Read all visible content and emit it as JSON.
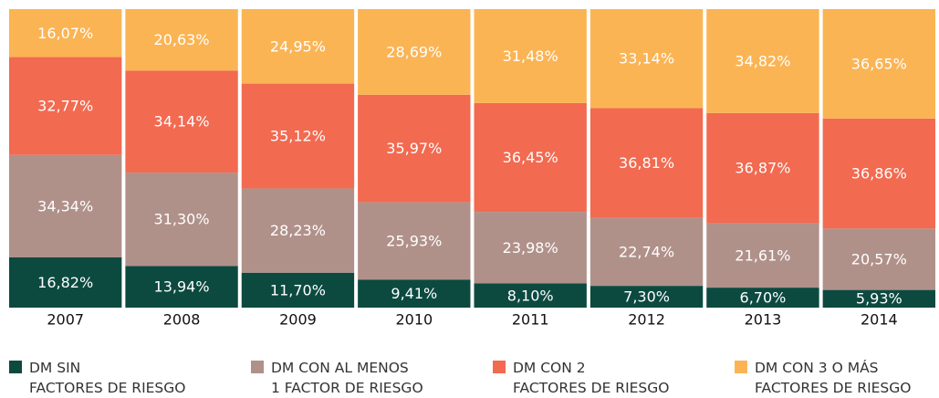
{
  "chart_data": {
    "type": "stacked-bar",
    "categories": [
      "2007",
      "2008",
      "2009",
      "2010",
      "2011",
      "2012",
      "2013",
      "2014"
    ],
    "ylim": [
      0,
      100
    ],
    "series": [
      {
        "name": "DM SIN\nFACTORES DE RIESGO",
        "color": "#0c4a40",
        "values": [
          16.82,
          13.94,
          11.7,
          9.41,
          8.1,
          7.3,
          6.7,
          5.93
        ],
        "value_labels": [
          "16,82%",
          "13,94%",
          "11,70%",
          "9,41%",
          "8,10%",
          "7,30%",
          "6,70%",
          "5,93%"
        ]
      },
      {
        "name": "DM CON AL MENOS\n1 FACTOR DE RIESGO",
        "color": "#b0918a",
        "values": [
          34.34,
          31.3,
          28.23,
          25.93,
          23.98,
          22.74,
          21.61,
          20.57
        ],
        "value_labels": [
          "34,34%",
          "31,30%",
          "28,23%",
          "25,93%",
          "23,98%",
          "22,74%",
          "21,61%",
          "20,57%"
        ]
      },
      {
        "name": "DM CON 2\nFACTORES DE RIESGO",
        "color": "#f26a50",
        "values": [
          32.77,
          34.14,
          35.12,
          35.97,
          36.45,
          36.81,
          36.87,
          36.86
        ],
        "value_labels": [
          "32,77%",
          "34,14%",
          "35,12%",
          "35,97%",
          "36,45%",
          "36,81%",
          "36,87%",
          "36,86%"
        ]
      },
      {
        "name": "DM CON 3 O MÁS\nFACTORES DE RIESGO",
        "color": "#fbb454",
        "values": [
          16.07,
          20.63,
          24.95,
          28.69,
          31.48,
          33.14,
          34.82,
          36.65
        ],
        "value_labels": [
          "16,07%",
          "20,63%",
          "24,95%",
          "28,69%",
          "31,48%",
          "33,14%",
          "34,82%",
          "36,65%"
        ]
      }
    ]
  }
}
